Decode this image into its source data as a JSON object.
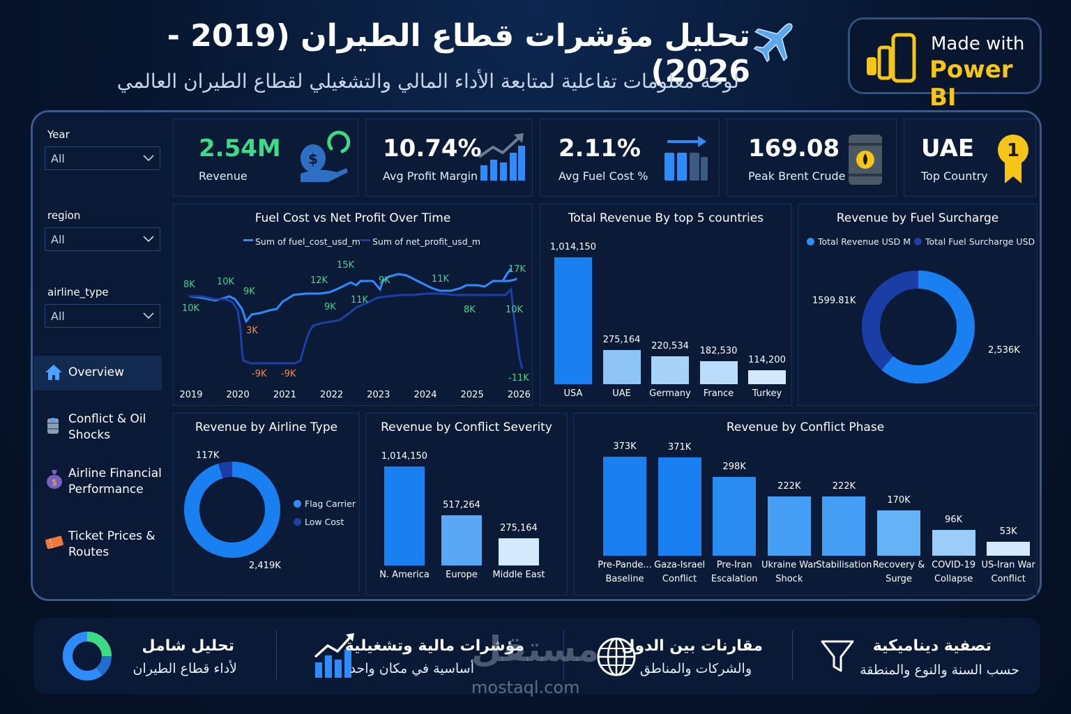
{
  "header": {
    "title": "تحليل مؤشرات قطاع الطيران (2019 - 2026)",
    "subtitle": "لوحة معلومات تفاعلية لمتابعة الأداء المالي والتشغيلي لقطاع الطيران العالمي",
    "badge_line1": "Made with",
    "badge_line2": "Power BI",
    "icon": "airplane-icon"
  },
  "filters": [
    {
      "label": "Year",
      "value": "All"
    },
    {
      "label": "region",
      "value": "All"
    },
    {
      "label": "airline_type",
      "value": "All"
    }
  ],
  "nav": [
    {
      "label": "Overview",
      "icon": "home-icon",
      "active": true
    },
    {
      "label": "Conflict & Oil Shocks",
      "icon": "oil-barrel-icon"
    },
    {
      "label": "Airline Financial Performance",
      "icon": "money-bag-icon"
    },
    {
      "label": "Ticket Prices & Routes",
      "icon": "ticket-icon"
    }
  ],
  "kpis": [
    {
      "value": "2.54M",
      "label": "Revenue",
      "color": "#3ddc84",
      "icon": "money-hand-icon"
    },
    {
      "value": "10.74%",
      "label": "Avg Profit Margin",
      "icon": "growth-chart-icon"
    },
    {
      "value": "2.11%",
      "label": "Avg Fuel Cost %",
      "icon": "bar-arrow-icon"
    },
    {
      "value": "169.08",
      "label": "Peak Brent Crude",
      "icon": "oil-barrel-icon"
    },
    {
      "value": "UAE",
      "label": "Top Country",
      "icon": "first-place-medal-icon",
      "medal": "1"
    }
  ],
  "chart_data": [
    {
      "type": "line",
      "title": "Fuel Cost vs Net Profit Over Time",
      "legend": [
        "Sum of fuel_cost_usd_m",
        "Sum of net_profit_usd_m"
      ],
      "x_ticks": [
        "2019",
        "2020",
        "2021",
        "2022",
        "2023",
        "2024",
        "2025",
        "2026"
      ],
      "labels": [
        {
          "text": "8K",
          "series": 0,
          "color": "#3ddc84"
        },
        {
          "text": "10K",
          "series": 1,
          "color": "#3ddc84"
        },
        {
          "text": "10K",
          "series": 0,
          "color": "#3ddc84"
        },
        {
          "text": "9K",
          "series": 0,
          "color": "#3ddc84"
        },
        {
          "text": "3K",
          "series": 0,
          "color": "#ff8a3d"
        },
        {
          "text": "-9K",
          "series": 1,
          "color": "#ff8a3d"
        },
        {
          "text": "-9K",
          "series": 1,
          "color": "#ff8a3d"
        },
        {
          "text": "12K",
          "series": 0,
          "color": "#3ddc84"
        },
        {
          "text": "15K",
          "series": 0,
          "color": "#3ddc84"
        },
        {
          "text": "9K",
          "series": 1,
          "color": "#3ddc84"
        },
        {
          "text": "11K",
          "series": 1,
          "color": "#3ddc84"
        },
        {
          "text": "9K",
          "series": 0,
          "color": "#3ddc84"
        },
        {
          "text": "11K",
          "series": 0,
          "color": "#3ddc84"
        },
        {
          "text": "8K",
          "series": 1,
          "color": "#3ddc84"
        },
        {
          "text": "17K",
          "series": 0,
          "color": "#3ddc84"
        },
        {
          "text": "10K",
          "series": 1,
          "color": "#3ddc84"
        },
        {
          "text": "-11K",
          "series": 1,
          "color": "#3ddc84"
        }
      ]
    },
    {
      "type": "bar",
      "title": "Total Revenue By top 5 countries",
      "categories": [
        "USA",
        "UAE",
        "Germany",
        "France",
        "Turkey"
      ],
      "values": [
        1014150,
        275164,
        220534,
        182530,
        114200
      ],
      "value_labels": [
        "1,014,150",
        "275,164",
        "220,534",
        "182,530",
        "114,200"
      ]
    },
    {
      "type": "pie",
      "title": "Revenue by Fuel Surcharge",
      "categories": [
        "Total Revenue USD M",
        "Total Fuel Surcharge USD"
      ],
      "values": [
        2536,
        1599.81
      ],
      "value_labels": [
        "2,536K",
        "1599.81K"
      ]
    },
    {
      "type": "pie",
      "title": "Revenue by Airline Type",
      "categories": [
        "Flag Carrier",
        "Low Cost"
      ],
      "values": [
        2419,
        117
      ],
      "value_labels": [
        "2,419K",
        "117K"
      ]
    },
    {
      "type": "bar",
      "title": "Revenue by Conflict Severity",
      "categories": [
        "N. America",
        "Europe",
        "Middle East"
      ],
      "values": [
        1014150,
        517264,
        275164
      ],
      "value_labels": [
        "1,014,150",
        "517,264",
        "275,164"
      ]
    },
    {
      "type": "bar",
      "title": "Revenue by Conflict Phase",
      "categories": [
        "Pre-Pande... Baseline",
        "Gaza-Israel Conflict",
        "Pre-Iran Escalation",
        "Ukraine War Shock",
        "Stabilisation",
        "Recovery & Surge",
        "COVID-19 Collapse",
        "US-Iran War Conflict"
      ],
      "values": [
        373,
        371,
        298,
        222,
        222,
        170,
        96,
        53
      ],
      "value_labels": [
        "373K",
        "371K",
        "298K",
        "222K",
        "222K",
        "170K",
        "96K",
        "53K"
      ]
    }
  ],
  "footer": [
    {
      "title": "تصفية ديناميكية",
      "text": "حسب السنة والنوع والمنطقة",
      "icon": "filter-icon"
    },
    {
      "title": "مقارنات بين الدول",
      "text": "والشركات والمناطق",
      "icon": "globe-icon"
    },
    {
      "title": "مؤشرات مالية وتشغيلية",
      "text": "أساسية في مكان واحد",
      "icon": "growth-chart-icon"
    },
    {
      "title": "تحليل شامل",
      "text": "لأداء قطاع الطيران",
      "icon": "donut-chart-icon"
    }
  ],
  "watermark": {
    "arabic": "مستقل",
    "latin": "mostaql.com"
  }
}
